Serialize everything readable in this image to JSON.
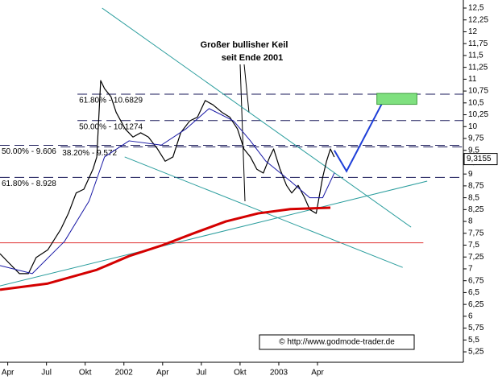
{
  "chart_data": {
    "type": "line",
    "annotation": [
      "Großer bullisher Keil",
      "seit Ende 2001"
    ],
    "copyright": "© http://www.godmode-trader.de",
    "last_price": {
      "value": 9.3155,
      "label": "9,3155"
    },
    "xlim": [
      -0.6,
      35.3
    ],
    "ylim": [
      5.03,
      12.67
    ],
    "xticks": [
      {
        "value": 0,
        "label": "Apr"
      },
      {
        "value": 3,
        "label": "Jul"
      },
      {
        "value": 6,
        "label": "Okt"
      },
      {
        "value": 9,
        "label": "2002"
      },
      {
        "value": 12,
        "label": "Apr"
      },
      {
        "value": 15,
        "label": "Jul"
      },
      {
        "value": 18,
        "label": "Okt"
      },
      {
        "value": 21,
        "label": "2003"
      },
      {
        "value": 24,
        "label": "Apr"
      }
    ],
    "yticks": [
      {
        "value": 12.5,
        "label": "12,5"
      },
      {
        "value": 12.25,
        "label": "12,25"
      },
      12,
      {
        "value": 11.75,
        "label": "11,75"
      },
      {
        "value": 11.5,
        "label": "11,5"
      },
      {
        "value": 11.25,
        "label": "11,25"
      },
      11,
      {
        "value": 10.75,
        "label": "10,75"
      },
      {
        "value": 10.5,
        "label": "10,5"
      },
      {
        "value": 10.25,
        "label": "10,25"
      },
      10,
      {
        "value": 9.75,
        "label": "9,75"
      },
      {
        "value": 9.5,
        "label": "9,5"
      },
      {
        "value": 9.25,
        "label": "9,25"
      },
      9,
      {
        "value": 8.75,
        "label": "8,75"
      },
      {
        "value": 8.5,
        "label": "8,5"
      },
      {
        "value": 8.25,
        "label": "8,25"
      },
      8,
      {
        "value": 7.75,
        "label": "7,75"
      },
      {
        "value": 7.5,
        "label": "7,5"
      },
      {
        "value": 7.25,
        "label": "7,25"
      },
      7,
      {
        "value": 6.75,
        "label": "6,75"
      },
      {
        "value": 6.5,
        "label": "6,5"
      },
      {
        "value": 6.25,
        "label": "6,25"
      },
      6,
      {
        "value": 5.75,
        "label": "5,75"
      },
      {
        "value": 5.5,
        "label": "5,5"
      },
      {
        "value": 5.25,
        "label": "5,25"
      }
    ],
    "series": [
      {
        "color": "#000000",
        "width": 1.2,
        "x": [
          -0.6,
          0,
          0.9,
          1.6,
          2.2,
          3.1,
          4.1,
          4.7,
          5.3,
          5.9,
          6.6,
          6.9,
          7.2,
          7.5,
          8.0,
          8.4,
          9.1,
          9.7,
          10.3,
          10.9,
          11.6,
          12.2,
          12.8,
          13.4,
          14.1,
          14.7,
          15.3,
          15.9,
          16.6,
          17.2,
          17.8,
          18.3,
          18.8,
          19.3,
          19.8,
          20.3,
          20.6,
          21.1,
          21.6,
          22.0,
          22.5,
          23.0,
          23.4,
          23.9,
          24.4,
          24.7,
          25.0,
          25.3
        ],
        "values": [
          7.32,
          7.15,
          6.9,
          6.9,
          7.24,
          7.4,
          7.83,
          8.17,
          8.6,
          8.68,
          9.1,
          9.36,
          10.97,
          10.8,
          10.63,
          10.3,
          9.95,
          9.78,
          9.87,
          9.78,
          9.53,
          9.27,
          9.36,
          9.87,
          10.12,
          10.2,
          10.55,
          10.46,
          10.3,
          10.2,
          9.95,
          9.53,
          9.36,
          9.1,
          9.02,
          9.36,
          9.53,
          9.1,
          8.76,
          8.6,
          8.76,
          8.5,
          8.25,
          8.17,
          8.93,
          9.27,
          9.53,
          9.36
        ]
      },
      {
        "color": "#1a1aa6",
        "width": 1,
        "x": [
          -0.6,
          1.9,
          4.4,
          6.3,
          7.5,
          9.4,
          11.9,
          13.8,
          15.6,
          17.5,
          18.8,
          20.0,
          21.9,
          23.4,
          24.4,
          25.3
        ],
        "values": [
          7.07,
          6.9,
          7.58,
          8.43,
          9.36,
          9.7,
          9.61,
          9.95,
          10.38,
          10.12,
          9.7,
          9.27,
          8.85,
          8.5,
          8.5,
          9.02
        ]
      },
      {
        "color": "#d40000",
        "width": 3,
        "x": [
          -0.6,
          3.1,
          6.9,
          9.4,
          11.9,
          14.4,
          16.9,
          19.4,
          21.9,
          25.0
        ],
        "values": [
          6.56,
          6.69,
          6.98,
          7.27,
          7.49,
          7.75,
          8.0,
          8.17,
          8.26,
          8.29
        ]
      }
    ],
    "trendlines": [
      {
        "color": "#2a9d9d",
        "x": [
          7.31,
          31.25
        ],
        "values": [
          12.5,
          7.88
        ]
      },
      {
        "color": "#2a9d9d",
        "x": [
          9.06,
          30.6
        ],
        "values": [
          9.36,
          7.03
        ]
      },
      {
        "color": "#2a9d9d",
        "x": [
          -0.6,
          32.5
        ],
        "values": [
          6.64,
          8.85
        ]
      },
      {
        "color": "#e03030",
        "x": [
          -0.6,
          32.2
        ],
        "values": [
          7.55,
          7.55
        ]
      }
    ],
    "levels": [
      {
        "value": 10.6829,
        "label": "61.80% - 10.6829",
        "x_start": 5.4
      },
      {
        "value": 10.1274,
        "label": "50.00% - 10.1274",
        "x_start": 5.4
      },
      {
        "value": 9.572,
        "label": "38.20% - 9.572",
        "x_start": 4.1
      },
      {
        "value": 9.606,
        "label": "50.00% - 9.606",
        "x_start": -0.6
      },
      {
        "value": 8.928,
        "label": "61.80% - 8.928",
        "x_start": -0.6
      }
    ],
    "projection": {
      "color": "#1f3fd8",
      "x": [
        25.3,
        26.25,
        29.25
      ],
      "values": [
        9.5,
        9.06,
        10.62
      ]
    },
    "target_box": {
      "color": "#7fe07f",
      "x": [
        28.6,
        31.7
      ],
      "values": [
        10.7,
        10.47
      ]
    }
  }
}
